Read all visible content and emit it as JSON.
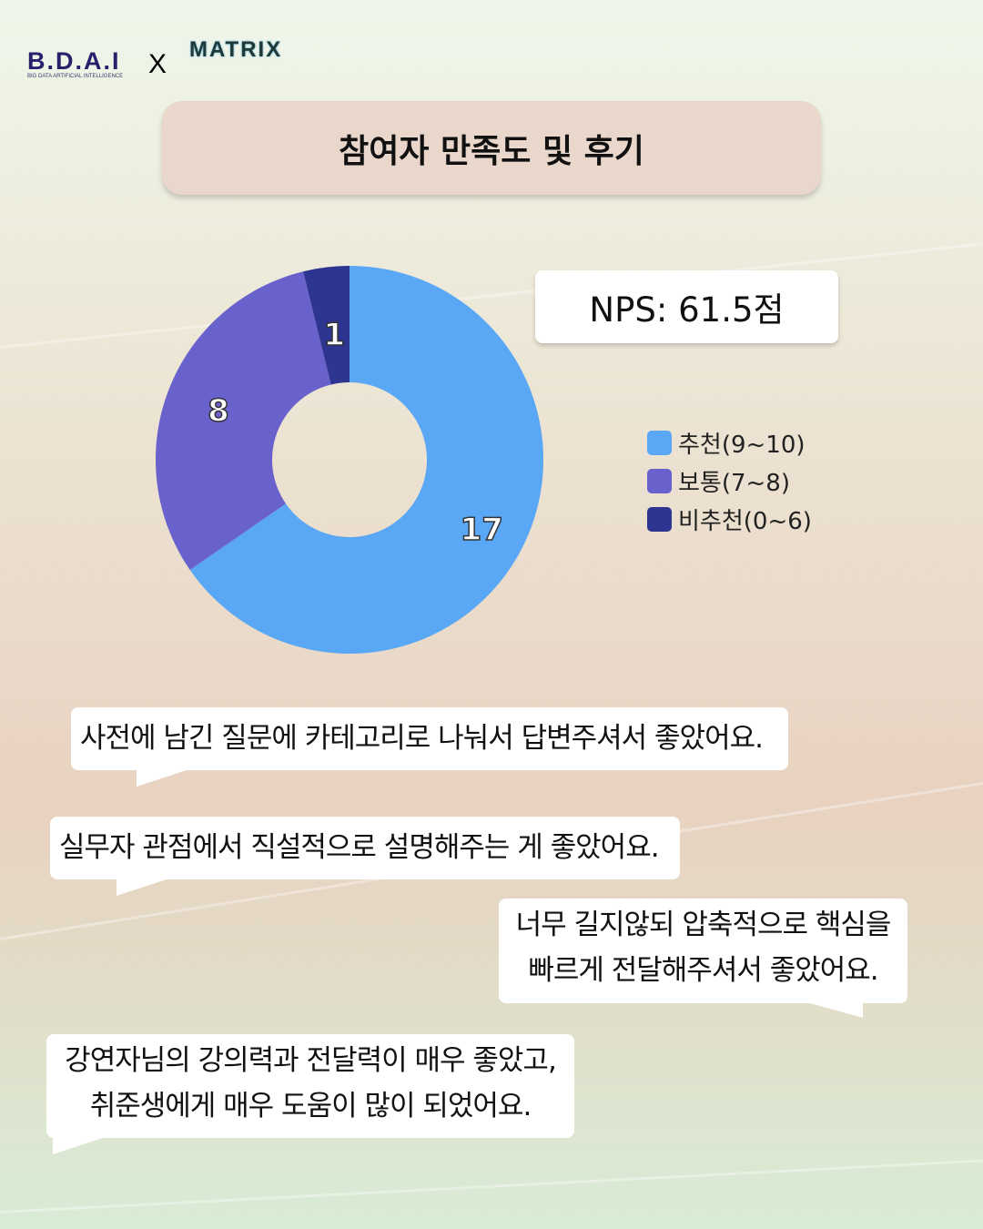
{
  "header": {
    "logo_left": "B.D.A.I",
    "logo_left_sub": "BIG DATA ARTIFICIAL INTELLIGENCE",
    "separator": "X",
    "logo_right": "MATRIX"
  },
  "title": "참여자 만족도 및 후기",
  "nps_label": "NPS: 61.5점",
  "chart_data": {
    "type": "pie",
    "donut": true,
    "categories": [
      "추천(9~10)",
      "보통(7~8)",
      "비추천(0~6)"
    ],
    "values": [
      17,
      8,
      1
    ],
    "colors": [
      "#5aa8f5",
      "#6a62cc",
      "#2e3590"
    ],
    "legend": "right"
  },
  "reviews": [
    {
      "lines": [
        "사전에 남긴 질문에 카테고리로 나눠서 답변주셔서 좋았어요."
      ]
    },
    {
      "lines": [
        "실무자 관점에서 직설적으로 설명해주는 게 좋았어요."
      ]
    },
    {
      "lines": [
        "너무 길지않되 압축적으로 핵심을",
        "빠르게 전달해주셔서 좋았어요."
      ]
    },
    {
      "lines": [
        "강연자님의 강의력과 전달력이 매우 좋았고,",
        "취준생에게 매우 도움이 많이 되었어요."
      ]
    }
  ]
}
